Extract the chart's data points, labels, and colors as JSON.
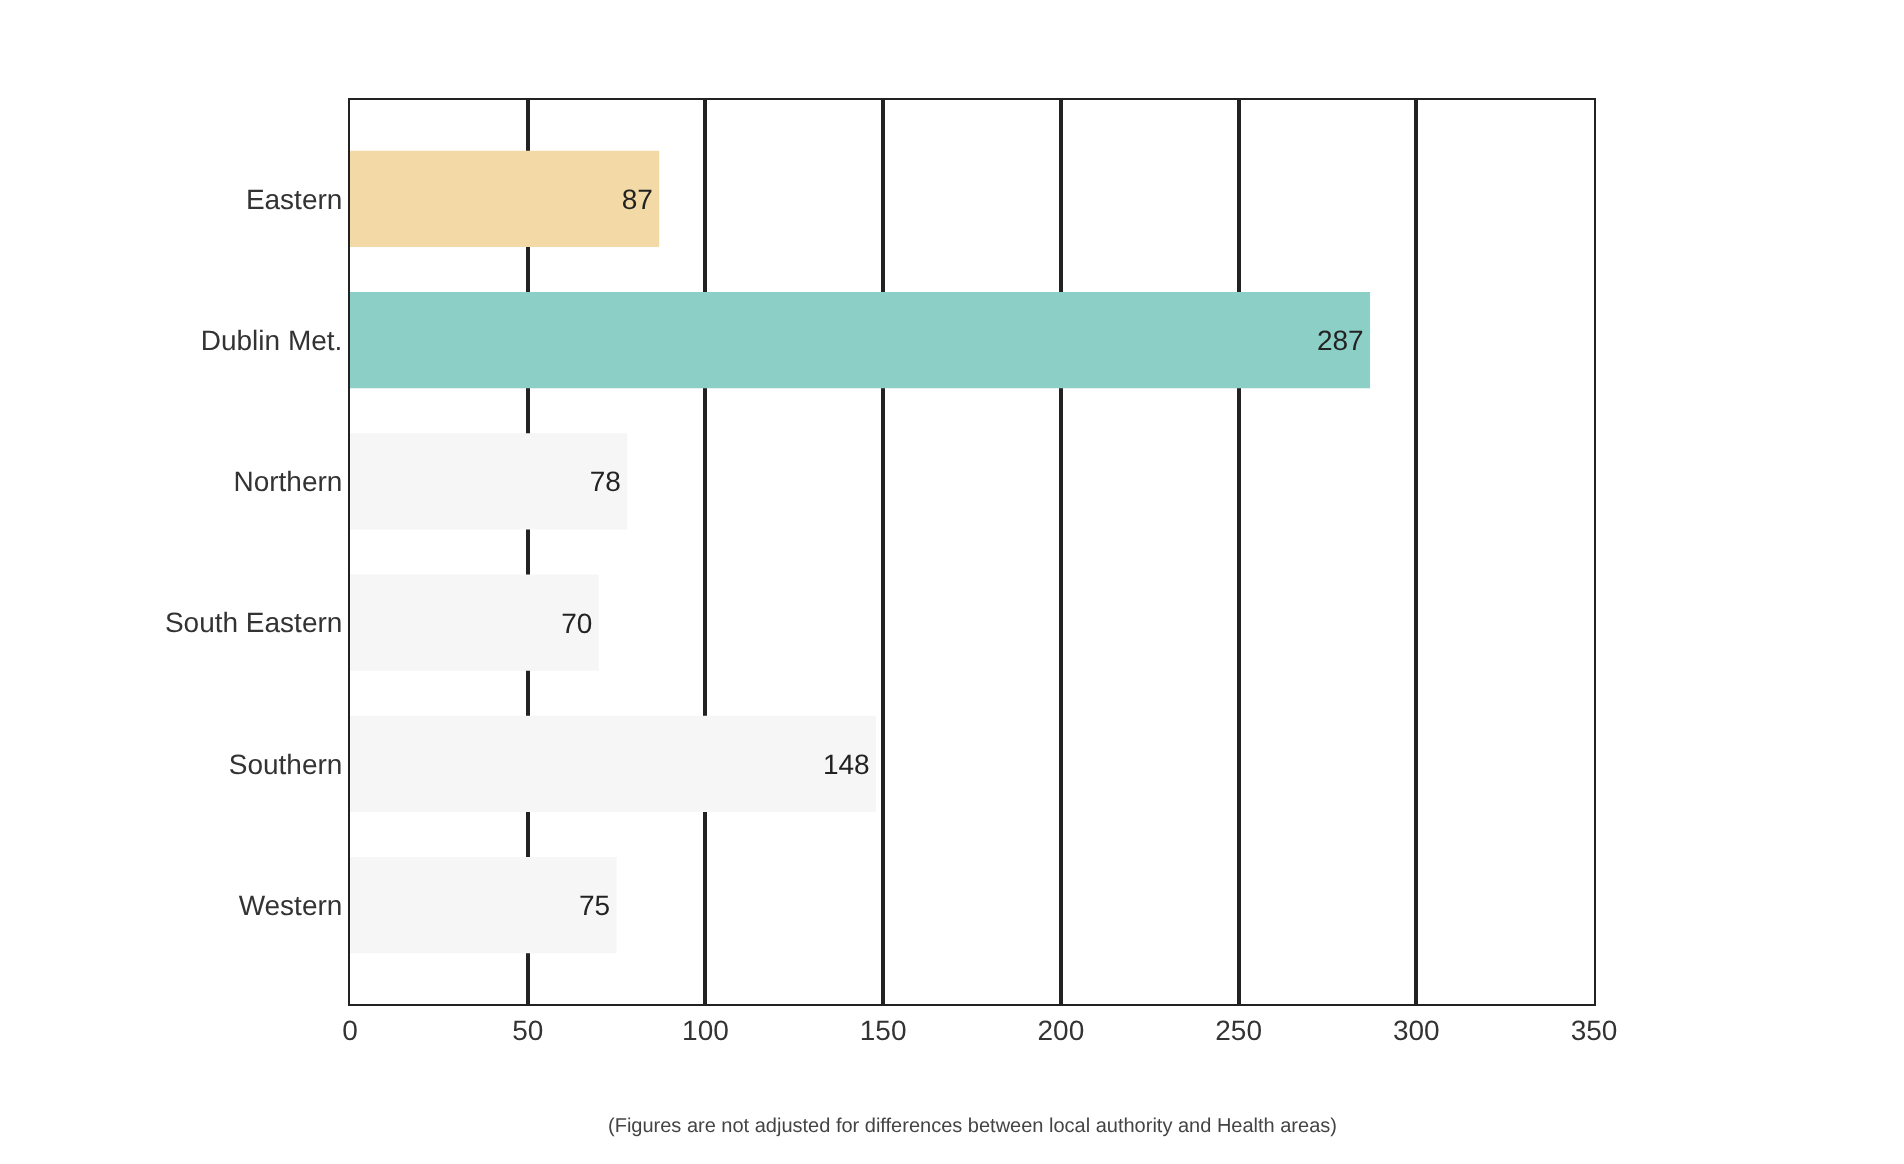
{
  "chart_data": {
    "type": "bar",
    "orientation": "horizontal",
    "categories": [
      "Eastern",
      "Dublin Met.",
      "Northern",
      "South Eastern",
      "Southern",
      "Western"
    ],
    "values": [
      87,
      287,
      78,
      70,
      148,
      75
    ],
    "colors": [
      "#f2d9a6",
      "#8ccfc6",
      "#f6f6f6",
      "#f6f6f6",
      "#f6f6f6",
      "#f6f6f6"
    ],
    "xlim": [
      0,
      350
    ],
    "xticks": [
      0,
      50,
      100,
      150,
      200,
      250,
      300,
      350
    ],
    "grid": "x",
    "data_labels": true,
    "annotations": [
      "(Figures are not adjusted for differences between local authority and Health areas)"
    ]
  }
}
